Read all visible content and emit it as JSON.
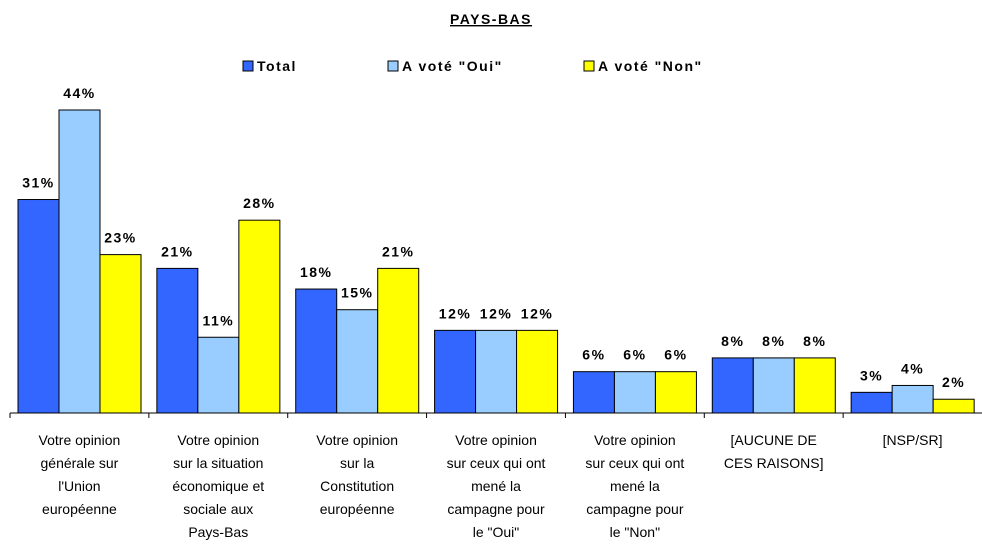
{
  "chart_data": {
    "type": "bar",
    "title": "PAYS-BAS",
    "categories": [
      [
        "Votre opinion",
        "générale sur",
        "l'Union",
        "européenne"
      ],
      [
        "Votre opinion",
        "sur la situation",
        "économique et",
        "sociale aux",
        "Pays-Bas"
      ],
      [
        "Votre opinion",
        "sur la",
        "Constitution",
        "européenne"
      ],
      [
        "Votre opinion",
        "sur ceux qui ont",
        "mené la",
        "campagne pour",
        "le \"Oui\""
      ],
      [
        "Votre opinion",
        "sur ceux qui ont",
        "mené la",
        "campagne pour",
        "le \"Non\""
      ],
      [
        "[AUCUNE DE",
        "CES RAISONS]"
      ],
      [
        "[NSP/SR]"
      ]
    ],
    "series": [
      {
        "name": "Total",
        "color": "#3366ff",
        "values": [
          31,
          21,
          18,
          12,
          6,
          8,
          3
        ],
        "value_labels": [
          "31%",
          "21%",
          "18%",
          "12%",
          "6%",
          "8%",
          "3%"
        ]
      },
      {
        "name": "A voté \"Oui\"",
        "color": "#99ccff",
        "values": [
          44,
          11,
          15,
          12,
          6,
          8,
          4
        ],
        "value_labels": [
          "44%",
          "11%",
          "15%",
          "12%",
          "6%",
          "8%",
          "4%"
        ]
      },
      {
        "name": "A voté \"Non\"",
        "color": "#ffff00",
        "values": [
          23,
          28,
          21,
          12,
          6,
          8,
          2
        ],
        "value_labels": [
          "23%",
          "28%",
          "21%",
          "12%",
          "6%",
          "8%",
          "2%"
        ]
      }
    ],
    "legend": "top"
  }
}
